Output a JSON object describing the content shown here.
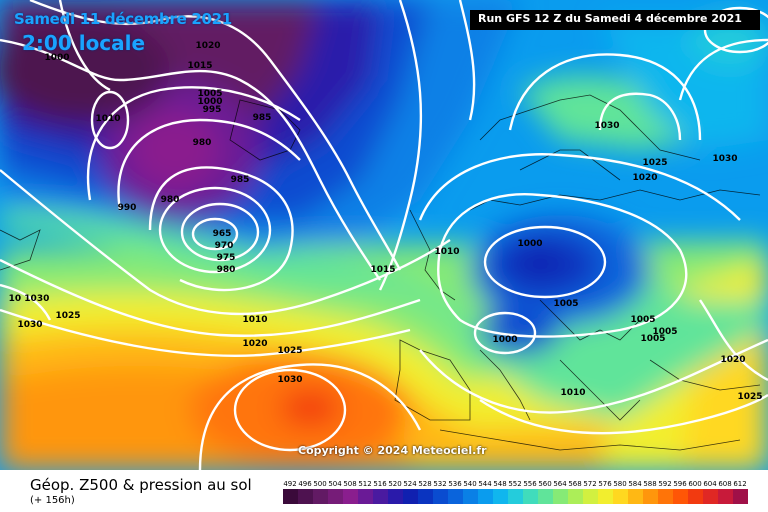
{
  "header": {
    "valid_date": "Samedi 11 décembre 2021",
    "local_time": "2:00 locale",
    "run_info": "Run GFS 12 Z du Samedi 4 décembre 2021"
  },
  "footer": {
    "title": "Géop. Z500 & pression au sol",
    "lead_time": "(+ 156h)",
    "copyright": "Copyright © 2024 Meteociel.fr"
  },
  "legend": {
    "ticks": [
      "492",
      "496",
      "500",
      "504",
      "508",
      "512",
      "516",
      "520",
      "524",
      "528",
      "532",
      "536",
      "540",
      "544",
      "548",
      "552",
      "556",
      "560",
      "564",
      "568",
      "572",
      "576",
      "580",
      "584",
      "588",
      "592",
      "596",
      "600",
      "604",
      "608",
      "612"
    ],
    "colors": [
      "#3a0a3a",
      "#4e1250",
      "#621a64",
      "#761c78",
      "#8a1e8e",
      "#6a1a96",
      "#4a1aa0",
      "#2a1aaa",
      "#1020b0",
      "#0a34c0",
      "#0a4cd0",
      "#0a64dc",
      "#0a80e6",
      "#0a9cee",
      "#10b6ee",
      "#24ccdc",
      "#40dcbc",
      "#60e49a",
      "#86ea76",
      "#acee58",
      "#d2f040",
      "#f2ee2e",
      "#ffd820",
      "#ffb814",
      "#ff960c",
      "#ff7408",
      "#ff5606",
      "#f23a10",
      "#e02824",
      "#c81a3a",
      "#a01048"
    ]
  },
  "isobars": [
    {
      "text": "1020"
    },
    {
      "text": "1015"
    },
    {
      "text": "1000"
    },
    {
      "text": "1010"
    },
    {
      "text": "1005"
    },
    {
      "text": "1000"
    },
    {
      "text": "995"
    },
    {
      "text": "985"
    },
    {
      "text": "980"
    },
    {
      "text": "985"
    },
    {
      "text": "990"
    },
    {
      "text": "980"
    },
    {
      "text": "965"
    },
    {
      "text": "970"
    },
    {
      "text": "975"
    },
    {
      "text": "980"
    },
    {
      "text": "1030"
    },
    {
      "text": "1025"
    },
    {
      "text": "1020"
    },
    {
      "text": "1030"
    },
    {
      "text": "1000"
    },
    {
      "text": "1010"
    },
    {
      "text": "1015"
    },
    {
      "text": "1005"
    },
    {
      "text": "1005"
    },
    {
      "text": "1005"
    },
    {
      "text": "1005"
    },
    {
      "text": "1000"
    },
    {
      "text": "1010"
    },
    {
      "text": "1010"
    },
    {
      "text": "1020"
    },
    {
      "text": "1025"
    },
    {
      "text": "1030"
    },
    {
      "text": "1020"
    },
    {
      "text": "1025"
    },
    {
      "text": "1030"
    },
    {
      "text": "1025"
    },
    {
      "text": "10 1030"
    }
  ]
}
